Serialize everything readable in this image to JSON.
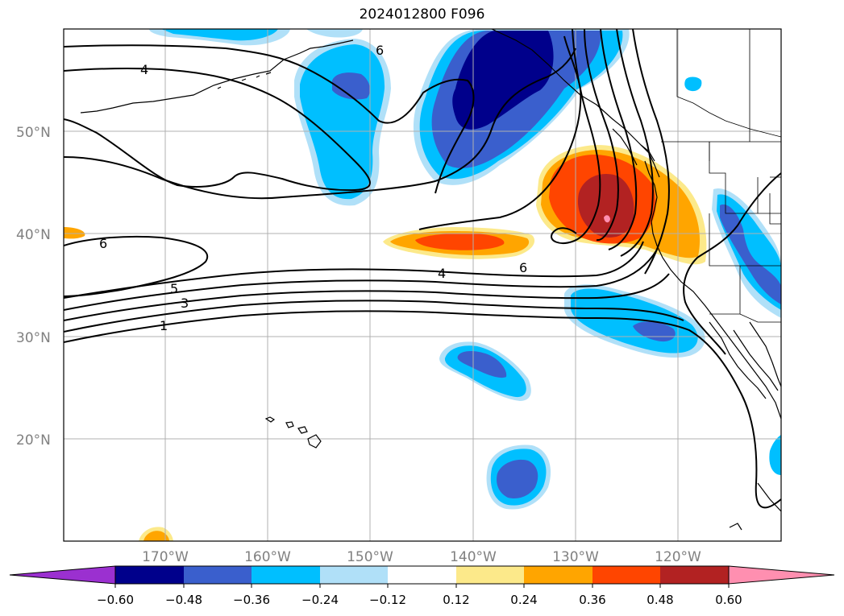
{
  "title": "2024012800 F096",
  "map": {
    "latitude_labels": [
      "50°N",
      "40°N",
      "30°N",
      "20°N"
    ],
    "longitude_labels": [
      "170°W",
      "160°W",
      "150°W",
      "140°W",
      "130°W",
      "120°W"
    ],
    "contour_labels": [
      "4",
      "6",
      "6",
      "4",
      "6",
      "5",
      "3",
      "1"
    ],
    "colors": {
      "neg_060": "#9b30d0",
      "neg_048": "#00008b",
      "neg_036": "#3a5fcd",
      "neg_024": "#00bfff",
      "neg_012": "#b0e0f8",
      "neutral": "#ffffff",
      "pos_012": "#fce98a",
      "pos_024": "#ffa500",
      "pos_036": "#ff4500",
      "pos_048": "#b22222",
      "pos_060": "#ff8fb0"
    }
  },
  "colorbar": {
    "tick_labels": [
      "−0.60",
      "−0.48",
      "−0.36",
      "−0.24",
      "−0.12",
      "0.12",
      "0.24",
      "0.36",
      "0.48",
      "0.60"
    ]
  }
}
